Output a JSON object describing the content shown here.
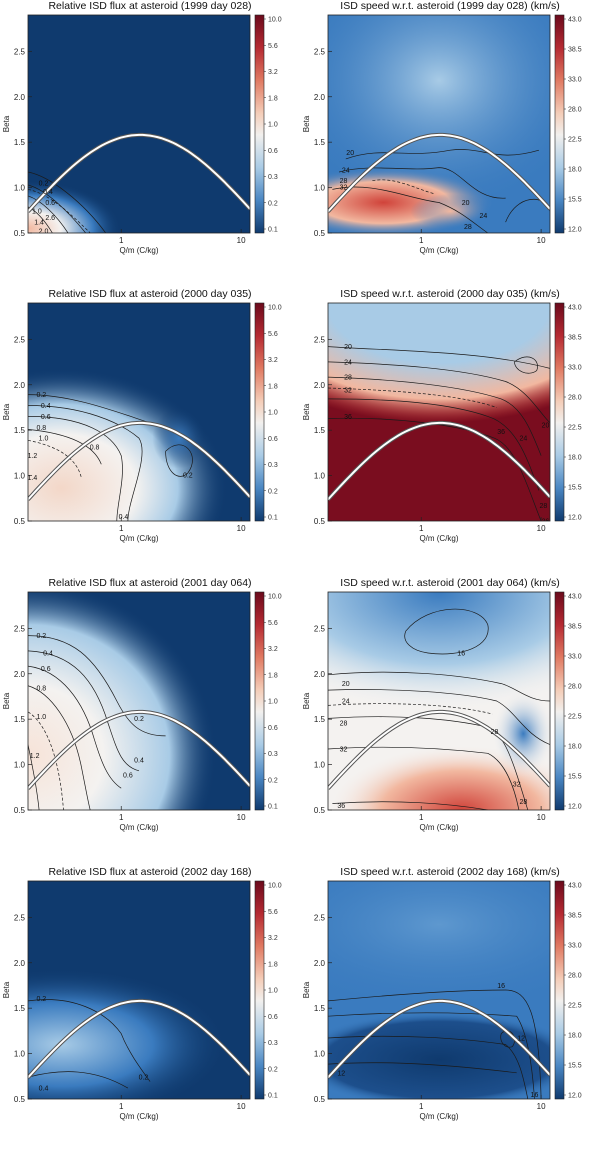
{
  "chart_data": [
    {
      "type": "heatmap",
      "title": "Relative ISD flux at asteroid (1999 day 028)",
      "xlabel": "Q/m  (C/kg)",
      "ylabel": "Beta",
      "xticks": [
        "1",
        "10"
      ],
      "yticks": [
        "0.5",
        "1.0",
        "1.5",
        "2.0",
        "2.5"
      ],
      "ylim": [
        0.5,
        2.9
      ],
      "colorbar": [
        "10.0",
        "5.6",
        "3.2",
        "1.8",
        "1.0",
        "0.6",
        "0.3",
        "0.2",
        "0.1"
      ],
      "contour_labels": [
        "0.2",
        "0.4",
        "0.6",
        "1.0",
        "1.4",
        "2.0",
        "2.6"
      ]
    },
    {
      "type": "heatmap",
      "title": "ISD speed w.r.t. asteroid (1999 day 028) (km/s)",
      "xlabel": "Q/m  (C/kg)",
      "ylabel": "Beta",
      "xticks": [
        "1",
        "10"
      ],
      "yticks": [
        "0.5",
        "1.0",
        "1.5",
        "2.0",
        "2.5"
      ],
      "ylim": [
        0.5,
        2.9
      ],
      "colorbar": [
        "43.0",
        "38.5",
        "33.0",
        "28.0",
        "22.5",
        "18.0",
        "15.5",
        "12.0"
      ],
      "contour_labels": [
        "20",
        "24",
        "28",
        "32",
        "20",
        "24",
        "28"
      ]
    },
    {
      "type": "heatmap",
      "title": "Relative ISD flux at asteroid (2000 day 035)",
      "xlabel": "Q/m  (C/kg)",
      "ylabel": "Beta",
      "xticks": [
        "1",
        "10"
      ],
      "yticks": [
        "0.5",
        "1.0",
        "1.5",
        "2.0",
        "2.5"
      ],
      "ylim": [
        0.5,
        2.9
      ],
      "colorbar": [
        "10.0",
        "5.6",
        "3.2",
        "1.8",
        "1.0",
        "0.6",
        "0.3",
        "0.2",
        "0.1"
      ],
      "contour_labels": [
        "0.2",
        "0.4",
        "0.6",
        "0.8",
        "1.0",
        "1.2",
        "1.4",
        "0.8",
        "0.2",
        "0.4"
      ]
    },
    {
      "type": "heatmap",
      "title": "ISD speed w.r.t. asteroid (2000 day 035) (km/s)",
      "xlabel": "Q/m  (C/kg)",
      "ylabel": "Beta",
      "xticks": [
        "1",
        "10"
      ],
      "yticks": [
        "0.5",
        "1.0",
        "1.5",
        "2.0",
        "2.5"
      ],
      "ylim": [
        0.5,
        2.9
      ],
      "colorbar": [
        "43.0",
        "38.5",
        "33.0",
        "28.0",
        "22.5",
        "18.0",
        "15.5",
        "12.0"
      ],
      "contour_labels": [
        "20",
        "24",
        "28",
        "32",
        "36",
        "36",
        "24",
        "20",
        "28",
        "36"
      ]
    },
    {
      "type": "heatmap",
      "title": "Relative ISD flux at asteroid (2001 day 064)",
      "xlabel": "Q/m  (C/kg)",
      "ylabel": "Beta",
      "xticks": [
        "1",
        "10"
      ],
      "yticks": [
        "0.5",
        "1.0",
        "1.5",
        "2.0",
        "2.5"
      ],
      "ylim": [
        0.5,
        2.9
      ],
      "colorbar": [
        "10.0",
        "5.6",
        "3.2",
        "1.8",
        "1.0",
        "0.6",
        "0.3",
        "0.2",
        "0.1"
      ],
      "contour_labels": [
        "0.2",
        "0.4",
        "0.6",
        "0.8",
        "1.0",
        "1.2",
        "0.2",
        "0.4",
        "0.6"
      ]
    },
    {
      "type": "heatmap",
      "title": "ISD speed w.r.t. asteroid (2001 day 064) (km/s)",
      "xlabel": "Q/m  (C/kg)",
      "ylabel": "Beta",
      "xticks": [
        "1",
        "10"
      ],
      "yticks": [
        "0.5",
        "1.0",
        "1.5",
        "2.0",
        "2.5"
      ],
      "ylim": [
        0.5,
        2.9
      ],
      "colorbar": [
        "43.0",
        "38.5",
        "33.0",
        "28.0",
        "22.5",
        "18.0",
        "15.5",
        "12.0"
      ],
      "contour_labels": [
        "16",
        "20",
        "24",
        "28",
        "32",
        "36",
        "28",
        "32",
        "28"
      ]
    },
    {
      "type": "heatmap",
      "title": "Relative ISD flux at asteroid (2002 day 168)",
      "xlabel": "Q/m  (C/kg)",
      "ylabel": "Beta",
      "xticks": [
        "1",
        "10"
      ],
      "yticks": [
        "0.5",
        "1.0",
        "1.5",
        "2.0",
        "2.5"
      ],
      "ylim": [
        0.5,
        2.9
      ],
      "colorbar": [
        "10.0",
        "5.6",
        "3.2",
        "1.8",
        "1.0",
        "0.6",
        "0.3",
        "0.2",
        "0.1"
      ],
      "contour_labels": [
        "0.2",
        "0.4",
        "0.2"
      ]
    },
    {
      "type": "heatmap",
      "title": "ISD speed w.r.t. asteroid (2002 day 168) (km/s)",
      "xlabel": "Q/m  (C/kg)",
      "ylabel": "Beta",
      "xticks": [
        "1",
        "10"
      ],
      "yticks": [
        "0.5",
        "1.0",
        "1.5",
        "2.0",
        "2.5"
      ],
      "ylim": [
        0.5,
        2.9
      ],
      "colorbar": [
        "43.0",
        "38.5",
        "33.0",
        "28.0",
        "22.5",
        "18.0",
        "15.5",
        "12.0"
      ],
      "contour_labels": [
        "16",
        "12",
        "16",
        "12"
      ]
    }
  ],
  "colors": {
    "dark_blue": "#0f3a6e",
    "mid_blue": "#3a7bbf",
    "light_blue": "#a8cbe6",
    "white": "#f4f2f0",
    "light_red": "#f2b8a0",
    "red": "#d0433a",
    "dark_red": "#7a0d1f"
  }
}
